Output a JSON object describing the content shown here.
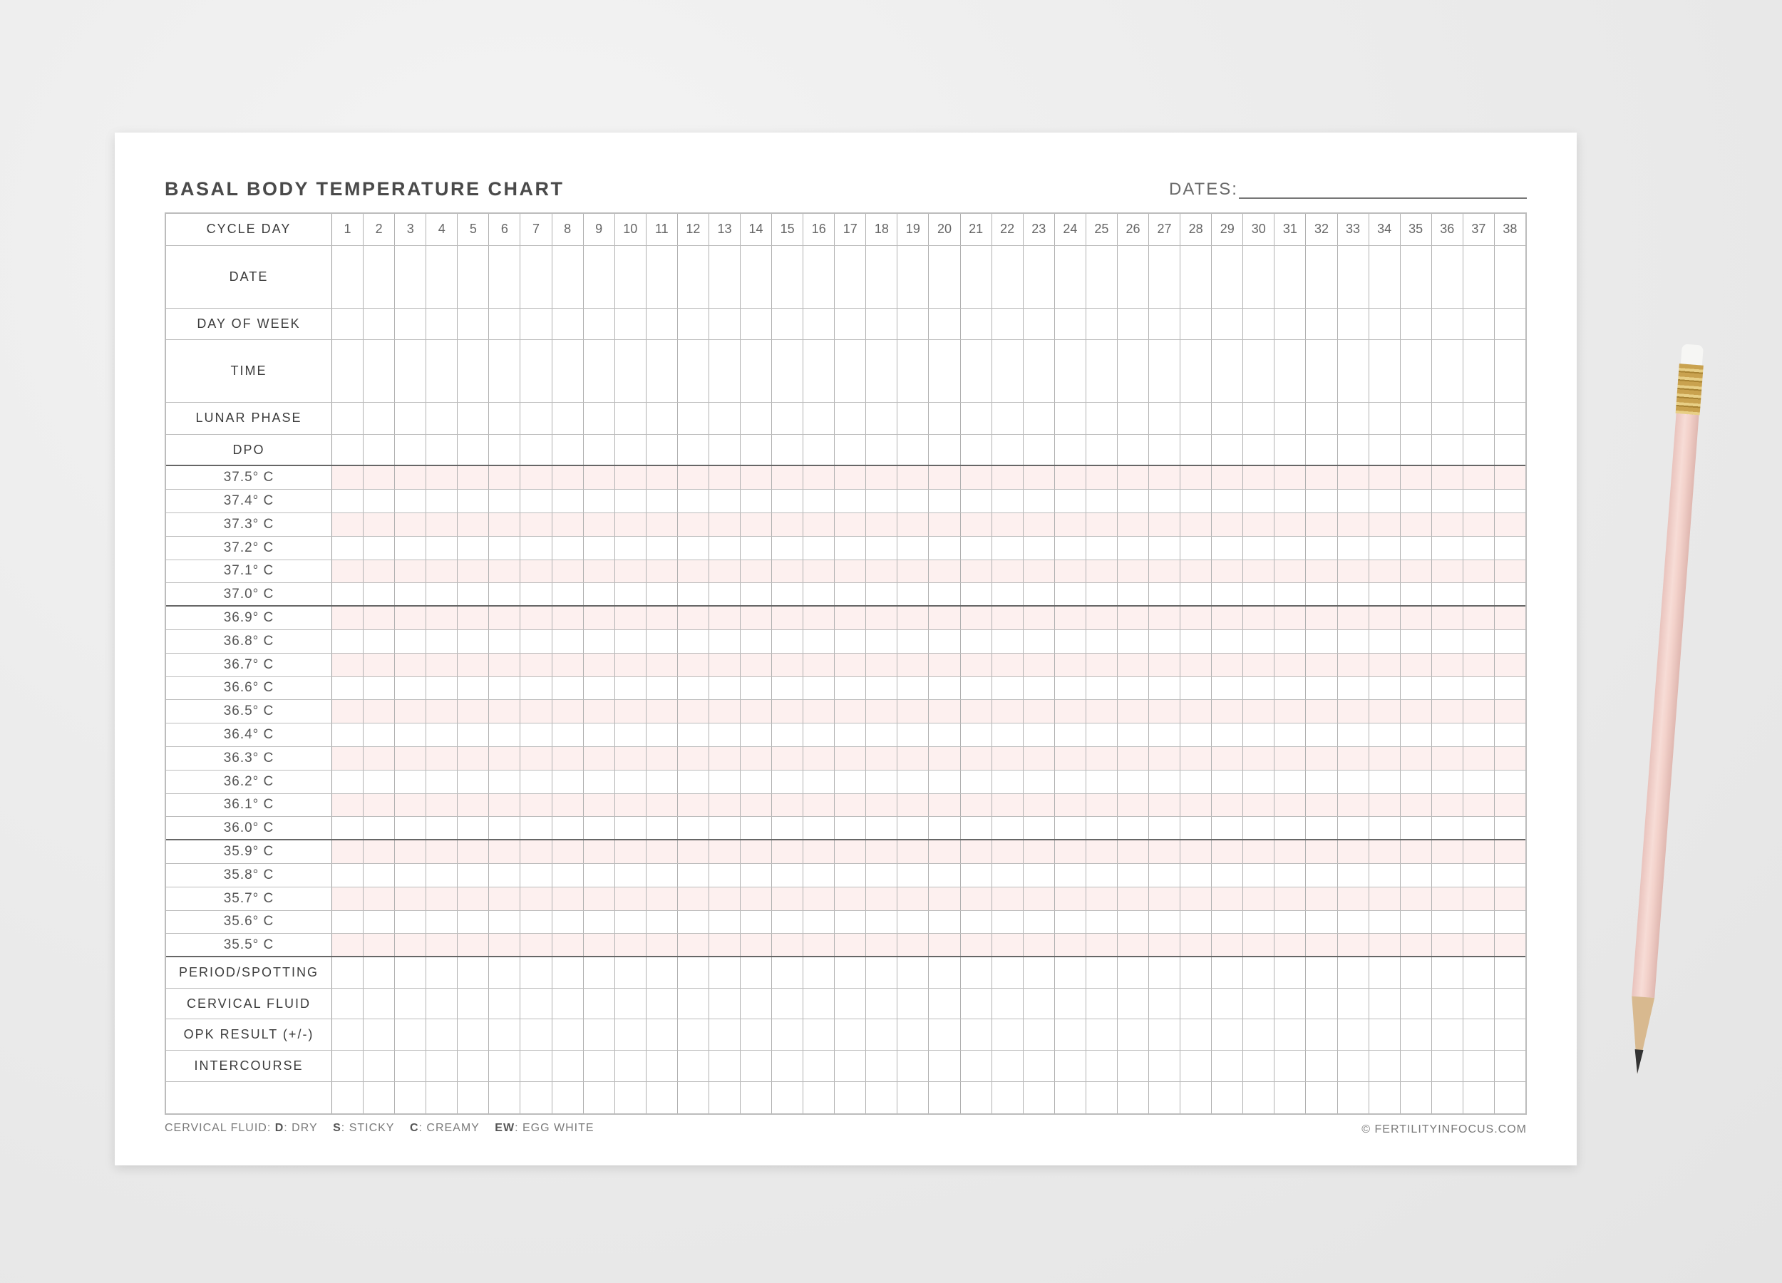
{
  "header": {
    "title": "BASAL BODY TEMPERATURE CHART",
    "dates_label": "DATES:"
  },
  "grid": {
    "days": [
      "1",
      "2",
      "3",
      "4",
      "5",
      "6",
      "7",
      "8",
      "9",
      "10",
      "11",
      "12",
      "13",
      "14",
      "15",
      "16",
      "17",
      "18",
      "19",
      "20",
      "21",
      "22",
      "23",
      "24",
      "25",
      "26",
      "27",
      "28",
      "29",
      "30",
      "31",
      "32",
      "33",
      "34",
      "35",
      "36",
      "37",
      "38"
    ],
    "cycle_day_label": "CYCLE DAY",
    "top_rows": [
      {
        "label": "DATE",
        "tall": true
      },
      {
        "label": "DAY OF WEEK",
        "tall": false
      },
      {
        "label": "TIME",
        "tall": true
      },
      {
        "label": "LUNAR PHASE",
        "tall": false
      },
      {
        "label": "DPO",
        "tall": false
      }
    ],
    "temperatures": [
      "37.5° C",
      "37.4° C",
      "37.3° C",
      "37.2° C",
      "37.1° C",
      "37.0° C",
      "36.9° C",
      "36.8° C",
      "36.7° C",
      "36.6° C",
      "36.5° C",
      "36.4° C",
      "36.3° C",
      "36.2° C",
      "36.1° C",
      "36.0° C",
      "35.9° C",
      "35.8° C",
      "35.7° C",
      "35.6° C",
      "35.5° C"
    ],
    "bottom_rows": [
      "PERIOD/SPOTTING",
      "CERVICAL FLUID",
      "OPK RESULT (+/-)",
      "INTERCOURSE",
      ""
    ]
  },
  "footer": {
    "legend_prefix": "CERVICAL FLUID:",
    "legend": [
      {
        "key": "D",
        "value": ": DRY"
      },
      {
        "key": "S",
        "value": ": STICKY"
      },
      {
        "key": "C",
        "value": ": CREAMY"
      },
      {
        "key": "EW",
        "value": ": EGG WHITE"
      }
    ],
    "copyright": "© FERTILITYINFOCUS.COM"
  },
  "colors": {
    "pink_row": "#fdf0ef",
    "grid_line": "#bcbcbc",
    "pencil_body": "#f3d2cb"
  }
}
